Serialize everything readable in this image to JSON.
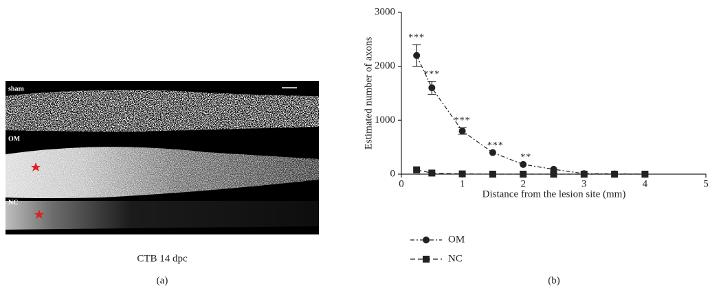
{
  "panel_a": {
    "labels": [
      "sham",
      "OM",
      "NC"
    ],
    "caption": "CTB 14 dpc",
    "tag": "(a)"
  },
  "chart_data": {
    "type": "line",
    "tag": "(b)",
    "x_label": "Distance from the lesion site (mm)",
    "y_label": "Estimated number of axons",
    "xlim": [
      0,
      5
    ],
    "ylim": [
      0,
      3000
    ],
    "xticks": [
      0,
      1,
      2,
      3,
      4,
      5
    ],
    "yticks": [
      0,
      1000,
      2000,
      3000
    ],
    "x": [
      0.25,
      0.5,
      1,
      1.5,
      2,
      2.5,
      3,
      3.5,
      4
    ],
    "series": [
      {
        "name": "OM",
        "color": "#222222",
        "marker": "circle",
        "values": [
          2200,
          1600,
          800,
          400,
          180,
          90,
          10,
          5,
          0
        ],
        "errors": [
          200,
          120,
          60,
          null,
          null,
          null,
          null,
          null,
          null
        ],
        "sig_labels": [
          "***",
          "***",
          "***",
          "***",
          "**",
          null,
          null,
          null,
          null
        ]
      },
      {
        "name": "NC",
        "color": "#222222",
        "marker": "square",
        "values": [
          80,
          20,
          5,
          0,
          0,
          0,
          0,
          0,
          0
        ]
      }
    ]
  }
}
